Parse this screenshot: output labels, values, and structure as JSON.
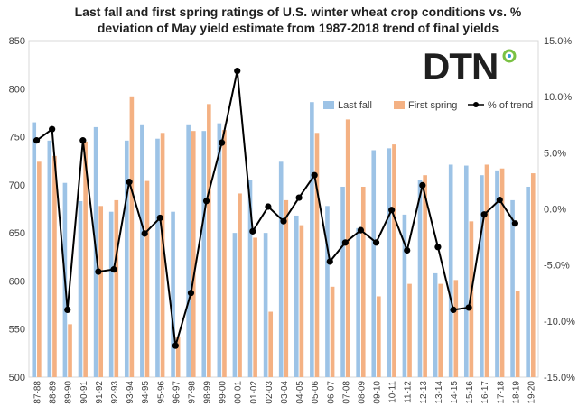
{
  "chart_data": {
    "type": "bar",
    "title_line1": "Last fall and first spring ratings of U.S. winter wheat crop conditions vs. %",
    "title_line2": "deviation of May yield estimate from 1987-2018 trend of final yields",
    "logo_text": "DTN",
    "categories": [
      "87-88",
      "88-89",
      "89-90",
      "90-91",
      "91-92",
      "92-93",
      "93-94",
      "94-95",
      "95-96",
      "96-97",
      "97-98",
      "98-99",
      "99-00",
      "00-01",
      "01-02",
      "02-03",
      "03-04",
      "04-05",
      "05-06",
      "06-07",
      "07-08",
      "08-09",
      "09-10",
      "10-11",
      "11-12",
      "12-13",
      "13-14",
      "14-15",
      "15-16",
      "16-17",
      "17-18",
      "18-19",
      "19-20"
    ],
    "left_axis": {
      "min": 500,
      "max": 850,
      "ticks": [
        500,
        550,
        600,
        650,
        700,
        750,
        800,
        850
      ]
    },
    "right_axis": {
      "min": -15,
      "max": 15,
      "ticks": [
        -15,
        -10,
        -5,
        0,
        5,
        10,
        15
      ],
      "tick_labels": [
        "-15.0%",
        "-10.0%",
        "-5.0%",
        "0.0%",
        "5.0%",
        "10.0%",
        "15.0%"
      ]
    },
    "series": [
      {
        "name": "Last fall",
        "axis": "left",
        "color": "#9dc3e6",
        "values": [
          765,
          746,
          702,
          683,
          760,
          672,
          746,
          762,
          748,
          672,
          762,
          756,
          764,
          650,
          705,
          650,
          724,
          668,
          786,
          678,
          698,
          655,
          736,
          738,
          669,
          705,
          608,
          721,
          720,
          710,
          715,
          684,
          698
        ]
      },
      {
        "name": "First spring",
        "axis": "left",
        "color": "#f4b183",
        "values": [
          724,
          730,
          555,
          745,
          678,
          684,
          792,
          704,
          754,
          542,
          756,
          784,
          757,
          691,
          645,
          568,
          684,
          658,
          754,
          594,
          768,
          698,
          584,
          742,
          597,
          710,
          597,
          601,
          662,
          721,
          717,
          590,
          712
        ]
      },
      {
        "name": "% of trend",
        "axis": "right",
        "color": "#000000",
        "type": "line",
        "values": [
          6.1,
          7.1,
          -9.0,
          6.1,
          -5.6,
          -5.4,
          2.4,
          -2.2,
          -0.8,
          -12.2,
          -7.5,
          0.7,
          5.9,
          12.3,
          -2.0,
          0.2,
          -1.1,
          1.0,
          3.0,
          -4.7,
          -3.0,
          -1.9,
          -3.0,
          -0.1,
          -3.7,
          2.1,
          -3.4,
          -9.0,
          -8.8,
          -0.5,
          0.8,
          -1.3,
          null
        ]
      }
    ],
    "legend_position": "top-right",
    "grid": false
  }
}
